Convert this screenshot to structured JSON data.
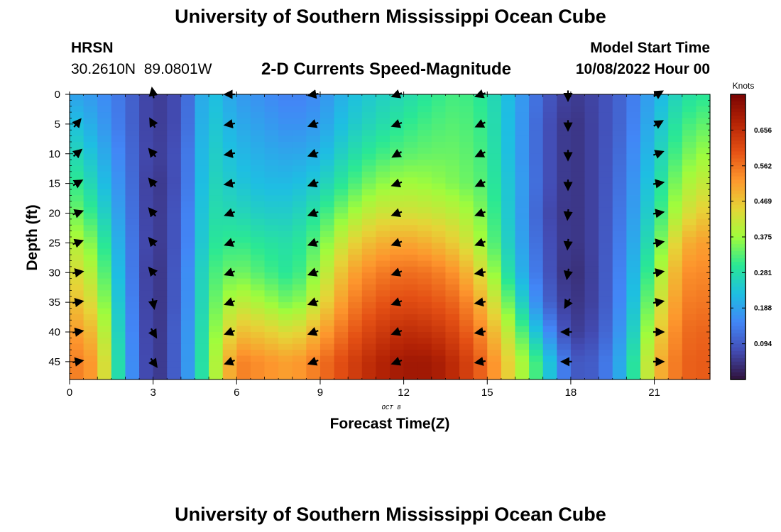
{
  "header": {
    "title": "University of Southern Mississippi Ocean Cube",
    "station": "HRSN",
    "coords": "30.2610N  89.0801W",
    "subtitle": "2-D Currents Speed-Magnitude",
    "model_label": "Model Start Time",
    "model_time": "10/08/2022 Hour 00"
  },
  "footer": {
    "title": "University of Southern Mississippi Ocean Cube"
  },
  "chart_data": {
    "type": "heatmap",
    "xlabel": "Forecast Time(Z)",
    "ylabel": "Depth (ft)",
    "date_label": "OCT 8",
    "colorbar_label": "Knots",
    "x_ticks": [
      0,
      3,
      6,
      9,
      12,
      15,
      18,
      21
    ],
    "y_ticks": [
      0,
      5,
      10,
      15,
      20,
      25,
      30,
      35,
      40,
      45
    ],
    "xlim": [
      0,
      23
    ],
    "ylim": [
      48,
      0
    ],
    "colorbar_ticks": [
      "0.656",
      "0.562",
      "0.469",
      "0.375",
      "0.281",
      "0.188",
      "0.094"
    ],
    "colorbar_range": [
      0,
      0.75
    ],
    "hours": [
      0,
      1,
      2,
      3,
      4,
      5,
      6,
      7,
      8,
      9,
      10,
      11,
      12,
      13,
      14,
      15,
      16,
      17,
      18,
      19,
      20,
      21,
      22,
      23
    ],
    "depths": [
      0,
      5,
      10,
      15,
      20,
      25,
      30,
      35,
      40,
      45
    ],
    "speed_knots": [
      [
        0.19,
        0.17,
        0.12,
        0.05,
        0.08,
        0.24,
        0.18,
        0.16,
        0.14,
        0.16,
        0.22,
        0.25,
        0.27,
        0.3,
        0.32,
        0.29,
        0.2,
        0.1,
        0.05,
        0.07,
        0.12,
        0.2,
        0.28,
        0.3
      ],
      [
        0.24,
        0.19,
        0.12,
        0.05,
        0.08,
        0.25,
        0.2,
        0.18,
        0.16,
        0.18,
        0.24,
        0.27,
        0.3,
        0.32,
        0.33,
        0.3,
        0.2,
        0.09,
        0.04,
        0.07,
        0.12,
        0.22,
        0.31,
        0.34
      ],
      [
        0.28,
        0.22,
        0.13,
        0.05,
        0.09,
        0.26,
        0.22,
        0.2,
        0.19,
        0.21,
        0.27,
        0.31,
        0.33,
        0.34,
        0.34,
        0.31,
        0.2,
        0.09,
        0.04,
        0.07,
        0.13,
        0.24,
        0.34,
        0.38
      ],
      [
        0.32,
        0.25,
        0.14,
        0.04,
        0.09,
        0.27,
        0.24,
        0.22,
        0.22,
        0.25,
        0.31,
        0.36,
        0.38,
        0.37,
        0.35,
        0.32,
        0.21,
        0.09,
        0.04,
        0.07,
        0.14,
        0.26,
        0.38,
        0.42
      ],
      [
        0.36,
        0.29,
        0.15,
        0.04,
        0.1,
        0.28,
        0.27,
        0.25,
        0.25,
        0.3,
        0.37,
        0.42,
        0.43,
        0.42,
        0.4,
        0.34,
        0.21,
        0.08,
        0.04,
        0.07,
        0.15,
        0.28,
        0.42,
        0.47
      ],
      [
        0.41,
        0.34,
        0.16,
        0.04,
        0.1,
        0.29,
        0.31,
        0.29,
        0.28,
        0.34,
        0.44,
        0.49,
        0.51,
        0.49,
        0.45,
        0.36,
        0.22,
        0.09,
        0.04,
        0.07,
        0.16,
        0.31,
        0.49,
        0.52
      ],
      [
        0.45,
        0.38,
        0.17,
        0.03,
        0.11,
        0.31,
        0.35,
        0.32,
        0.29,
        0.38,
        0.5,
        0.55,
        0.57,
        0.56,
        0.52,
        0.41,
        0.24,
        0.1,
        0.03,
        0.07,
        0.17,
        0.35,
        0.53,
        0.54
      ],
      [
        0.49,
        0.42,
        0.18,
        0.03,
        0.11,
        0.32,
        0.41,
        0.38,
        0.34,
        0.43,
        0.54,
        0.59,
        0.61,
        0.6,
        0.57,
        0.47,
        0.3,
        0.12,
        0.04,
        0.07,
        0.18,
        0.39,
        0.55,
        0.56
      ],
      [
        0.53,
        0.47,
        0.19,
        0.03,
        0.12,
        0.33,
        0.48,
        0.46,
        0.43,
        0.5,
        0.58,
        0.63,
        0.66,
        0.65,
        0.61,
        0.52,
        0.37,
        0.19,
        0.05,
        0.08,
        0.2,
        0.43,
        0.57,
        0.58
      ],
      [
        0.56,
        0.51,
        0.2,
        0.03,
        0.12,
        0.34,
        0.55,
        0.53,
        0.51,
        0.56,
        0.62,
        0.67,
        0.7,
        0.7,
        0.65,
        0.56,
        0.42,
        0.28,
        0.09,
        0.1,
        0.23,
        0.47,
        0.58,
        0.59
      ]
    ],
    "arrow_hours": [
      0.25,
      3.0,
      5.8,
      8.8,
      11.8,
      14.8,
      17.9,
      21.1
    ],
    "arrow_direction_deg": [
      [
        null,
        350,
        270,
        260,
        250,
        250,
        180,
        60
      ],
      [
        40,
        330,
        260,
        250,
        250,
        245,
        180,
        60
      ],
      [
        50,
        320,
        260,
        250,
        240,
        245,
        180,
        70
      ],
      [
        60,
        320,
        260,
        250,
        250,
        245,
        180,
        80
      ],
      [
        70,
        320,
        250,
        250,
        250,
        250,
        185,
        80
      ],
      [
        70,
        320,
        250,
        250,
        250,
        250,
        185,
        80
      ],
      [
        80,
        320,
        250,
        250,
        250,
        260,
        190,
        80
      ],
      [
        80,
        170,
        250,
        250,
        250,
        260,
        210,
        80
      ],
      [
        80,
        150,
        250,
        250,
        250,
        260,
        270,
        90
      ],
      [
        80,
        145,
        250,
        250,
        250,
        260,
        270,
        90
      ]
    ]
  }
}
